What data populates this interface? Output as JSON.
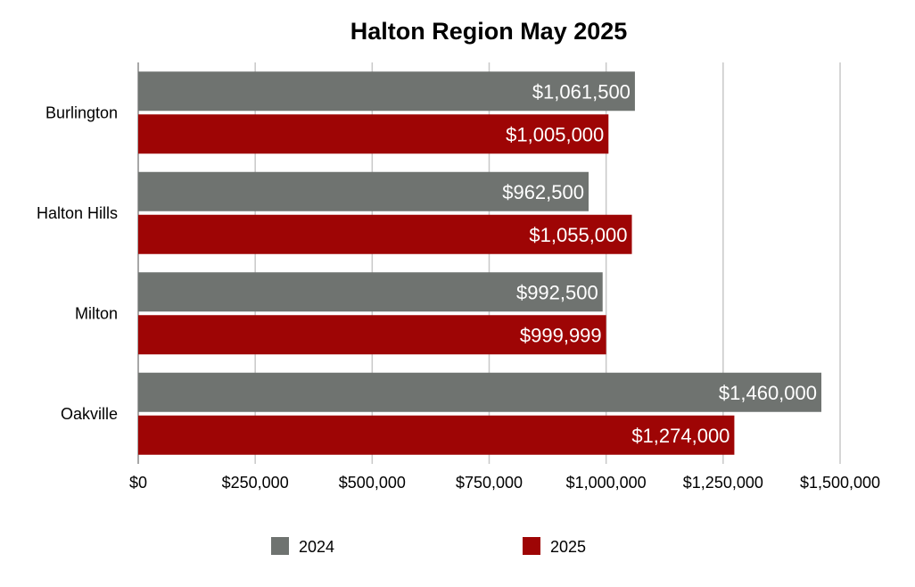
{
  "chart_data": {
    "type": "bar",
    "orientation": "horizontal",
    "title": "Halton Region May 2025",
    "categories": [
      "Burlington",
      "Halton Hills",
      "Milton",
      "Oakville"
    ],
    "series": [
      {
        "name": "2024",
        "color": "#6f7370",
        "values": [
          1061500,
          962500,
          992500,
          1460000
        ],
        "labels": [
          "$1,061,500",
          "$962,500",
          "$992,500",
          "$1,460,000"
        ]
      },
      {
        "name": "2025",
        "color": "#9e0505",
        "values": [
          1005000,
          1055000,
          999999,
          1274000
        ],
        "labels": [
          "$1,005,000",
          "$1,055,000",
          "$999,999",
          "$1,274,000"
        ]
      }
    ],
    "xlim": [
      0,
      1500000
    ],
    "x_ticks": [
      0,
      250000,
      500000,
      750000,
      1000000,
      1250000,
      1500000
    ],
    "x_tick_labels": [
      "$0",
      "$250,000",
      "$500,000",
      "$750,000",
      "$1,000,000",
      "$1,250,000",
      "$1,500,000"
    ],
    "grid": true,
    "legend_position": "bottom"
  }
}
